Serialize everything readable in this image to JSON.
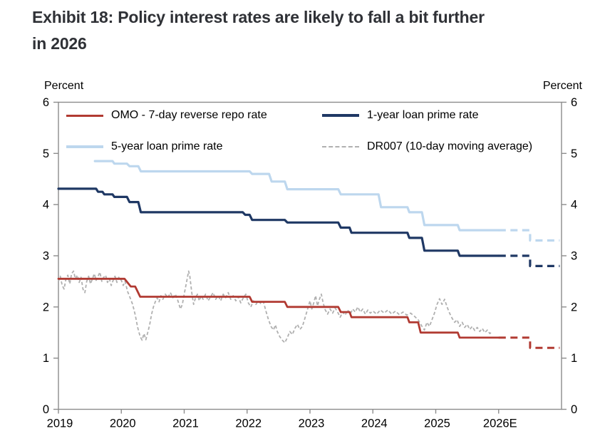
{
  "page": {
    "title_line1": "Exhibit 18: Policy interest rates are likely to fall a bit further",
    "title_line2": "in 2026"
  },
  "axis": {
    "unit_left": "Percent",
    "unit_right": "Percent"
  },
  "palette": {
    "omo_red": "#b13a32",
    "lpr1y_navy": "#1f3864",
    "lpr5y_lightblue": "#bdd7ee",
    "dr007_gray": "#b0b0b0",
    "frame_gray": "#8c8c8c",
    "title_color": "#2f3136"
  },
  "legend": {
    "position": "top-left inside plot, 2 columns x 2 rows",
    "items": [
      {
        "label": "OMO - 7-day reverse repo rate",
        "color": "#b13a32",
        "style": "solid"
      },
      {
        "label": "1-year loan prime rate",
        "color": "#1f3864",
        "style": "solid"
      },
      {
        "label": "5-year loan prime rate",
        "color": "#bdd7ee",
        "style": "solid"
      },
      {
        "label": "DR007 (10-day moving average)",
        "color": "#b0b0b0",
        "style": "dashed"
      }
    ]
  },
  "chart_data": {
    "type": "line",
    "title": "Exhibit 18: Policy interest rates are likely to fall a bit further in 2026",
    "ylabel": "Percent",
    "grid": false,
    "frame_color": "#8c8c8c",
    "xlim": [
      2019,
      2027
    ],
    "ylim": [
      0,
      6
    ],
    "y_ticks": [
      0,
      1,
      2,
      3,
      4,
      5,
      6
    ],
    "x_ticks": [
      {
        "label": "2019",
        "year": 2019
      },
      {
        "label": "2020",
        "year": 2020
      },
      {
        "label": "2021",
        "year": 2021
      },
      {
        "label": "2022",
        "year": 2022
      },
      {
        "label": "2023",
        "year": 2023
      },
      {
        "label": "2024",
        "year": 2024
      },
      {
        "label": "2025",
        "year": 2025
      },
      {
        "label": "2026E",
        "year": 2026
      }
    ],
    "series": [
      {
        "name": "DR007 (10-day moving average)",
        "color": "#b0b0b0",
        "dash": "dot",
        "width": 1.8,
        "points": [
          [
            2019.0,
            2.5
          ],
          [
            2019.03,
            2.6
          ],
          [
            2019.06,
            2.42
          ],
          [
            2019.09,
            2.35
          ],
          [
            2019.12,
            2.55
          ],
          [
            2019.15,
            2.62
          ],
          [
            2019.18,
            2.45
          ],
          [
            2019.21,
            2.65
          ],
          [
            2019.24,
            2.7
          ],
          [
            2019.27,
            2.55
          ],
          [
            2019.3,
            2.62
          ],
          [
            2019.33,
            2.48
          ],
          [
            2019.36,
            2.58
          ],
          [
            2019.39,
            2.35
          ],
          [
            2019.42,
            2.28
          ],
          [
            2019.45,
            2.5
          ],
          [
            2019.48,
            2.6
          ],
          [
            2019.51,
            2.45
          ],
          [
            2019.54,
            2.55
          ],
          [
            2019.57,
            2.65
          ],
          [
            2019.6,
            2.52
          ],
          [
            2019.63,
            2.6
          ],
          [
            2019.66,
            2.68
          ],
          [
            2019.69,
            2.5
          ],
          [
            2019.72,
            2.58
          ],
          [
            2019.75,
            2.62
          ],
          [
            2019.78,
            2.48
          ],
          [
            2019.81,
            2.55
          ],
          [
            2019.84,
            2.42
          ],
          [
            2019.87,
            2.52
          ],
          [
            2019.9,
            2.6
          ],
          [
            2019.93,
            2.48
          ],
          [
            2019.96,
            2.58
          ],
          [
            2020.0,
            2.52
          ],
          [
            2020.03,
            2.42
          ],
          [
            2020.06,
            2.5
          ],
          [
            2020.1,
            2.3
          ],
          [
            2020.14,
            2.18
          ],
          [
            2020.18,
            2.05
          ],
          [
            2020.22,
            1.85
          ],
          [
            2020.26,
            1.6
          ],
          [
            2020.3,
            1.42
          ],
          [
            2020.33,
            1.35
          ],
          [
            2020.36,
            1.48
          ],
          [
            2020.39,
            1.36
          ],
          [
            2020.42,
            1.5
          ],
          [
            2020.45,
            1.65
          ],
          [
            2020.48,
            1.85
          ],
          [
            2020.51,
            2.0
          ],
          [
            2020.54,
            2.1
          ],
          [
            2020.57,
            2.18
          ],
          [
            2020.6,
            2.1
          ],
          [
            2020.63,
            2.22
          ],
          [
            2020.66,
            2.15
          ],
          [
            2020.7,
            2.25
          ],
          [
            2020.74,
            2.18
          ],
          [
            2020.78,
            2.28
          ],
          [
            2020.82,
            2.18
          ],
          [
            2020.86,
            2.25
          ],
          [
            2020.9,
            2.12
          ],
          [
            2020.94,
            1.96
          ],
          [
            2020.97,
            2.05
          ],
          [
            2021.0,
            2.25
          ],
          [
            2021.04,
            2.5
          ],
          [
            2021.07,
            2.7
          ],
          [
            2021.09,
            2.6
          ],
          [
            2021.12,
            2.28
          ],
          [
            2021.15,
            2.05
          ],
          [
            2021.18,
            2.18
          ],
          [
            2021.21,
            2.25
          ],
          [
            2021.24,
            2.12
          ],
          [
            2021.27,
            2.22
          ],
          [
            2021.3,
            2.15
          ],
          [
            2021.34,
            2.25
          ],
          [
            2021.38,
            2.12
          ],
          [
            2021.42,
            2.2
          ],
          [
            2021.46,
            2.28
          ],
          [
            2021.5,
            2.15
          ],
          [
            2021.54,
            2.22
          ],
          [
            2021.58,
            2.12
          ],
          [
            2021.62,
            2.25
          ],
          [
            2021.66,
            2.18
          ],
          [
            2021.7,
            2.28
          ],
          [
            2021.74,
            2.15
          ],
          [
            2021.78,
            2.22
          ],
          [
            2021.82,
            2.12
          ],
          [
            2021.86,
            2.2
          ],
          [
            2021.9,
            2.08
          ],
          [
            2021.94,
            2.18
          ],
          [
            2021.98,
            2.25
          ],
          [
            2022.02,
            2.08
          ],
          [
            2022.06,
            2.0
          ],
          [
            2022.1,
            2.12
          ],
          [
            2022.14,
            2.05
          ],
          [
            2022.18,
            2.12
          ],
          [
            2022.22,
            2.06
          ],
          [
            2022.26,
            2.1
          ],
          [
            2022.3,
            1.92
          ],
          [
            2022.34,
            1.75
          ],
          [
            2022.38,
            1.62
          ],
          [
            2022.42,
            1.55
          ],
          [
            2022.45,
            1.65
          ],
          [
            2022.48,
            1.52
          ],
          [
            2022.52,
            1.42
          ],
          [
            2022.56,
            1.35
          ],
          [
            2022.6,
            1.3
          ],
          [
            2022.64,
            1.4
          ],
          [
            2022.68,
            1.52
          ],
          [
            2022.72,
            1.46
          ],
          [
            2022.76,
            1.58
          ],
          [
            2022.8,
            1.66
          ],
          [
            2022.84,
            1.56
          ],
          [
            2022.88,
            1.62
          ],
          [
            2022.92,
            1.78
          ],
          [
            2022.96,
            1.95
          ],
          [
            2023.0,
            2.12
          ],
          [
            2023.03,
            1.96
          ],
          [
            2023.06,
            2.08
          ],
          [
            2023.09,
            2.22
          ],
          [
            2023.12,
            2.02
          ],
          [
            2023.15,
            2.15
          ],
          [
            2023.18,
            2.25
          ],
          [
            2023.21,
            2.08
          ],
          [
            2023.24,
            1.95
          ],
          [
            2023.28,
            1.86
          ],
          [
            2023.32,
            1.96
          ],
          [
            2023.36,
            1.88
          ],
          [
            2023.4,
            1.98
          ],
          [
            2023.44,
            1.9
          ],
          [
            2023.48,
            1.8
          ],
          [
            2023.52,
            1.9
          ],
          [
            2023.56,
            1.84
          ],
          [
            2023.6,
            1.94
          ],
          [
            2023.64,
            1.86
          ],
          [
            2023.68,
            1.96
          ],
          [
            2023.72,
            1.9
          ],
          [
            2023.76,
            2.0
          ],
          [
            2023.8,
            1.9
          ],
          [
            2023.84,
            1.96
          ],
          [
            2023.88,
            1.86
          ],
          [
            2023.92,
            1.94
          ],
          [
            2023.96,
            1.88
          ],
          [
            2024.0,
            1.92
          ],
          [
            2024.06,
            1.86
          ],
          [
            2024.12,
            1.94
          ],
          [
            2024.18,
            1.88
          ],
          [
            2024.24,
            1.94
          ],
          [
            2024.3,
            1.86
          ],
          [
            2024.36,
            1.92
          ],
          [
            2024.42,
            1.85
          ],
          [
            2024.48,
            1.9
          ],
          [
            2024.54,
            1.84
          ],
          [
            2024.6,
            1.88
          ],
          [
            2024.66,
            1.82
          ],
          [
            2024.72,
            1.75
          ],
          [
            2024.78,
            1.62
          ],
          [
            2024.82,
            1.55
          ],
          [
            2024.86,
            1.7
          ],
          [
            2024.9,
            1.62
          ],
          [
            2024.94,
            1.75
          ],
          [
            2024.98,
            1.88
          ],
          [
            2025.02,
            2.05
          ],
          [
            2025.06,
            2.16
          ],
          [
            2025.1,
            2.05
          ],
          [
            2025.14,
            2.15
          ],
          [
            2025.18,
            2.0
          ],
          [
            2025.22,
            1.88
          ],
          [
            2025.26,
            1.78
          ],
          [
            2025.3,
            1.7
          ],
          [
            2025.34,
            1.75
          ],
          [
            2025.38,
            1.62
          ],
          [
            2025.42,
            1.7
          ],
          [
            2025.46,
            1.6
          ],
          [
            2025.5,
            1.66
          ],
          [
            2025.54,
            1.56
          ],
          [
            2025.58,
            1.62
          ],
          [
            2025.62,
            1.54
          ],
          [
            2025.66,
            1.6
          ],
          [
            2025.7,
            1.52
          ],
          [
            2025.74,
            1.58
          ],
          [
            2025.78,
            1.5
          ],
          [
            2025.82,
            1.55
          ],
          [
            2025.86,
            1.48
          ],
          [
            2025.9,
            1.52
          ]
        ]
      },
      {
        "name": "5-year loan prime rate",
        "color": "#bdd7ee",
        "dash": "solid",
        "width": 3.2,
        "points": [
          [
            2019.58,
            4.85
          ],
          [
            2019.86,
            4.85
          ],
          [
            2019.89,
            4.8
          ],
          [
            2020.09,
            4.8
          ],
          [
            2020.13,
            4.75
          ],
          [
            2020.27,
            4.75
          ],
          [
            2020.31,
            4.65
          ],
          [
            2022.04,
            4.65
          ],
          [
            2022.08,
            4.6
          ],
          [
            2022.35,
            4.6
          ],
          [
            2022.39,
            4.45
          ],
          [
            2022.6,
            4.45
          ],
          [
            2022.64,
            4.3
          ],
          [
            2023.45,
            4.3
          ],
          [
            2023.49,
            4.2
          ],
          [
            2024.09,
            4.2
          ],
          [
            2024.13,
            3.95
          ],
          [
            2024.55,
            3.95
          ],
          [
            2024.58,
            3.85
          ],
          [
            2024.78,
            3.85
          ],
          [
            2024.82,
            3.6
          ],
          [
            2025.35,
            3.6
          ],
          [
            2025.38,
            3.5
          ],
          [
            2026.0,
            3.5
          ]
        ]
      },
      {
        "name": "5-year loan prime rate (2026 forecast)",
        "color": "#bdd7ee",
        "dash": "dash",
        "width": 3.2,
        "points": [
          [
            2026.0,
            3.5
          ],
          [
            2026.5,
            3.5
          ],
          [
            2026.5,
            3.3
          ],
          [
            2026.97,
            3.3
          ]
        ]
      },
      {
        "name": "1-year loan prime rate",
        "color": "#1f3864",
        "dash": "solid",
        "width": 3.2,
        "points": [
          [
            2019.0,
            4.31
          ],
          [
            2019.6,
            4.31
          ],
          [
            2019.63,
            4.25
          ],
          [
            2019.7,
            4.25
          ],
          [
            2019.73,
            4.2
          ],
          [
            2019.86,
            4.2
          ],
          [
            2019.89,
            4.15
          ],
          [
            2020.09,
            4.15
          ],
          [
            2020.13,
            4.05
          ],
          [
            2020.27,
            4.05
          ],
          [
            2020.31,
            3.85
          ],
          [
            2021.93,
            3.85
          ],
          [
            2021.97,
            3.8
          ],
          [
            2022.04,
            3.8
          ],
          [
            2022.08,
            3.7
          ],
          [
            2022.6,
            3.7
          ],
          [
            2022.64,
            3.65
          ],
          [
            2023.45,
            3.65
          ],
          [
            2023.49,
            3.55
          ],
          [
            2023.63,
            3.55
          ],
          [
            2023.66,
            3.45
          ],
          [
            2024.55,
            3.45
          ],
          [
            2024.58,
            3.35
          ],
          [
            2024.78,
            3.35
          ],
          [
            2024.82,
            3.1
          ],
          [
            2025.35,
            3.1
          ],
          [
            2025.38,
            3.0
          ],
          [
            2026.0,
            3.0
          ]
        ]
      },
      {
        "name": "1-year loan prime rate (2026 forecast)",
        "color": "#1f3864",
        "dash": "dash",
        "width": 3.2,
        "points": [
          [
            2026.0,
            3.0
          ],
          [
            2026.5,
            3.0
          ],
          [
            2026.5,
            2.8
          ],
          [
            2026.97,
            2.8
          ]
        ]
      },
      {
        "name": "OMO - 7-day reverse repo rate",
        "color": "#b13a32",
        "dash": "solid",
        "width": 2.8,
        "points": [
          [
            2019.0,
            2.55
          ],
          [
            2020.05,
            2.55
          ],
          [
            2020.15,
            2.4
          ],
          [
            2020.22,
            2.4
          ],
          [
            2020.3,
            2.2
          ],
          [
            2022.04,
            2.2
          ],
          [
            2022.08,
            2.1
          ],
          [
            2022.6,
            2.1
          ],
          [
            2022.64,
            2.0
          ],
          [
            2023.45,
            2.0
          ],
          [
            2023.49,
            1.9
          ],
          [
            2023.63,
            1.9
          ],
          [
            2023.66,
            1.8
          ],
          [
            2024.55,
            1.8
          ],
          [
            2024.58,
            1.7
          ],
          [
            2024.72,
            1.7
          ],
          [
            2024.76,
            1.5
          ],
          [
            2025.35,
            1.5
          ],
          [
            2025.38,
            1.4
          ],
          [
            2026.0,
            1.4
          ]
        ]
      },
      {
        "name": "OMO - 7-day reverse repo rate (2026 forecast)",
        "color": "#b13a32",
        "dash": "dash",
        "width": 3,
        "points": [
          [
            2026.0,
            1.4
          ],
          [
            2026.5,
            1.4
          ],
          [
            2026.5,
            1.2
          ],
          [
            2026.97,
            1.2
          ]
        ]
      }
    ]
  }
}
